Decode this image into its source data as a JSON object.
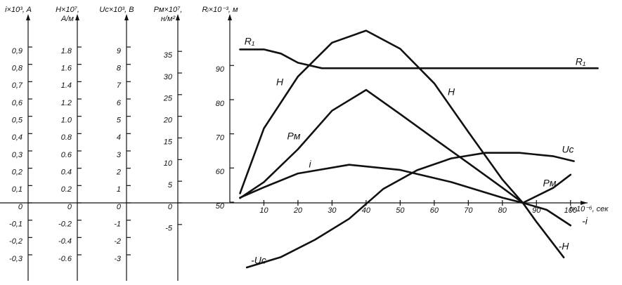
{
  "chart_data": {
    "type": "line",
    "axes": [
      {
        "label": [
          "i×10³, A"
        ],
        "ylim": [
          -0.45,
          1.05
        ],
        "yticks": [
          {
            "value": -0.3,
            "label": "-0,3"
          },
          {
            "value": -0.2,
            "label": "-0,2"
          },
          {
            "value": -0.1,
            "label": "-0,1"
          },
          0,
          {
            "value": 0.1,
            "label": "0,1"
          },
          {
            "value": 0.2,
            "label": "0,2"
          },
          {
            "value": 0.3,
            "label": "0,3"
          },
          {
            "value": 0.4,
            "label": "0,4"
          },
          {
            "value": 0.5,
            "label": "0,5"
          },
          {
            "value": 0.6,
            "label": "0,6"
          },
          {
            "value": 0.7,
            "label": "0,7"
          },
          {
            "value": 0.8,
            "label": "0,8"
          },
          {
            "value": 0.9,
            "label": "0,9"
          }
        ]
      },
      {
        "label": [
          "H×10⁷,",
          "A/м"
        ],
        "ylim": [
          -0.9,
          2.1
        ],
        "yticks": [
          -0.6,
          -0.4,
          -0.2,
          0,
          0.2,
          0.4,
          0.6,
          0.8,
          {
            "value": 1,
            "label": "1.0"
          },
          1.2,
          1.4,
          1.6,
          1.8
        ]
      },
      {
        "label": [
          "Uc×10³, B"
        ],
        "ylim": [
          -4.5,
          10.5
        ],
        "yticks": [
          -3,
          -2,
          -1,
          0,
          1,
          2,
          3,
          4,
          5,
          6,
          7,
          8,
          9
        ]
      },
      {
        "label": [
          "Pм×10⁷,",
          "н/м²"
        ],
        "ylim": [
          -18,
          42
        ],
        "yticks": [
          -5,
          0,
          5,
          10,
          15,
          20,
          25,
          30,
          35
        ]
      },
      {
        "label": [
          "Rᵢ×10⁻³, м"
        ],
        "ylim": [
          27,
          103
        ],
        "yticks": [
          50,
          60,
          70,
          80,
          90
        ]
      }
    ],
    "x_label": "t×10⁻⁶, сек",
    "xlim": [
      0,
      105
    ],
    "xticks": [
      10,
      20,
      30,
      40,
      50,
      60,
      70,
      80,
      90,
      100
    ],
    "series": [
      {
        "name": "R₁",
        "axis": 4,
        "x": [
          3,
          10,
          15,
          20,
          27,
          108
        ],
        "values": [
          94.7,
          94.7,
          93.5,
          90.8,
          89.2,
          89.2
        ]
      },
      {
        "name": "H",
        "axis": 1,
        "x": [
          3,
          10,
          20,
          30,
          40,
          50,
          60,
          70,
          80,
          86,
          90,
          98
        ],
        "values": [
          0.11,
          0.86,
          1.46,
          1.85,
          1.99,
          1.78,
          1.38,
          0.82,
          0.27,
          0,
          -0.22,
          -0.63
        ]
      },
      {
        "name": "Pм",
        "axis": 3,
        "x": [
          3,
          10,
          20,
          30,
          40,
          50,
          60,
          70,
          80,
          86,
          95,
          100
        ],
        "values": [
          1.1,
          4.8,
          12.4,
          21.3,
          26.1,
          20.5,
          14.8,
          9.2,
          3.5,
          0,
          3.5,
          6.5
        ]
      },
      {
        "name": "i",
        "axis": 0,
        "x": [
          3,
          10,
          20,
          35,
          50,
          65,
          80,
          86,
          93,
          100
        ],
        "values": [
          0.03,
          0.09,
          0.17,
          0.22,
          0.19,
          0.12,
          0.03,
          0,
          -0.04,
          -0.13
        ]
      },
      {
        "name": "Uc",
        "axis": 2,
        "x": [
          5,
          15,
          25,
          35,
          45,
          55,
          65,
          75,
          85,
          95,
          101
        ],
        "values": [
          -3.73,
          -3.13,
          -2.13,
          -0.92,
          0.8,
          1.89,
          2.57,
          2.89,
          2.89,
          2.69,
          2.41
        ]
      }
    ],
    "annotations": [
      "R₁",
      "H",
      "Pм",
      "-i",
      "-H",
      "-Uc"
    ]
  }
}
